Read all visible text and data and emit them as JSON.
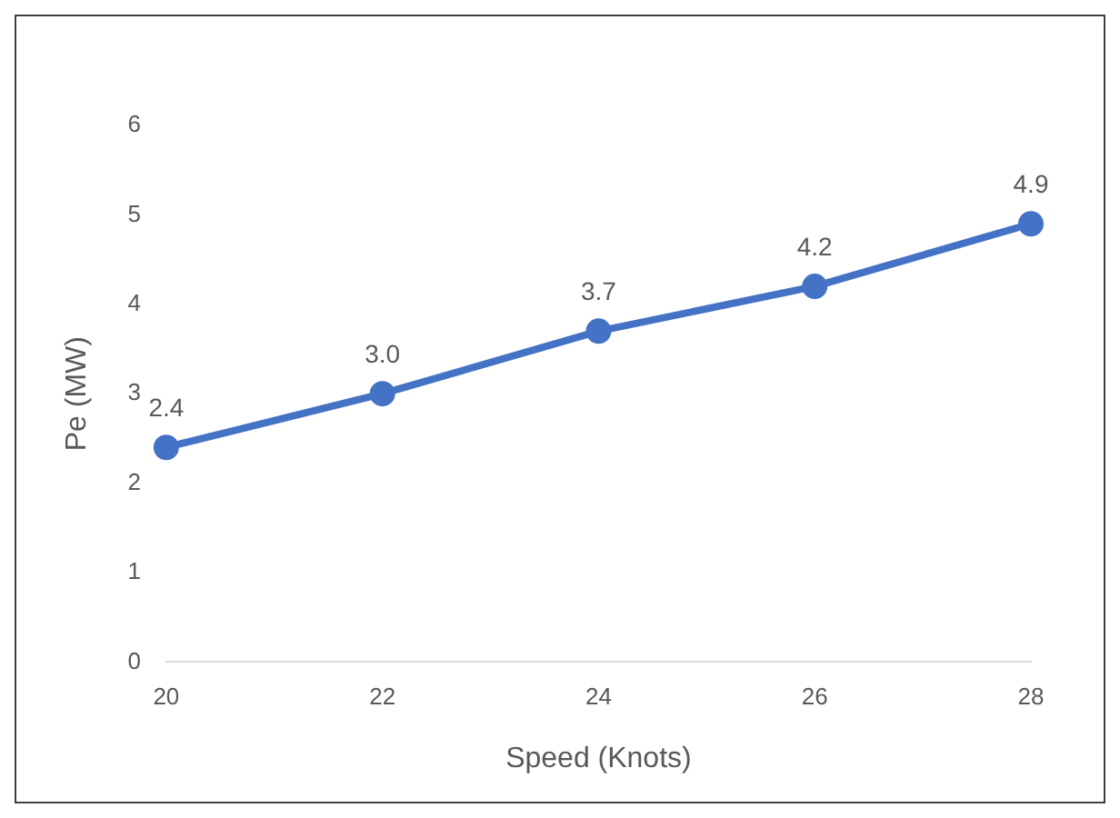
{
  "chart_data": {
    "type": "line",
    "xlabel": "Speed (Knots)",
    "ylabel": "Pe (MW)",
    "categories": [
      "20",
      "22",
      "24",
      "26",
      "28"
    ],
    "series": [
      {
        "color": "#4472c4",
        "values": [
          2.4,
          3.0,
          3.7,
          4.2,
          4.9
        ]
      }
    ],
    "value_labels": [
      "2.4",
      "3.0",
      "3.7",
      "4.2",
      "4.9"
    ],
    "ylim": [
      0,
      6
    ],
    "yticks": [
      0,
      1,
      2,
      3,
      4,
      5,
      6
    ],
    "grid": false,
    "legend": false,
    "marker": "circle",
    "line_style": "solid"
  }
}
